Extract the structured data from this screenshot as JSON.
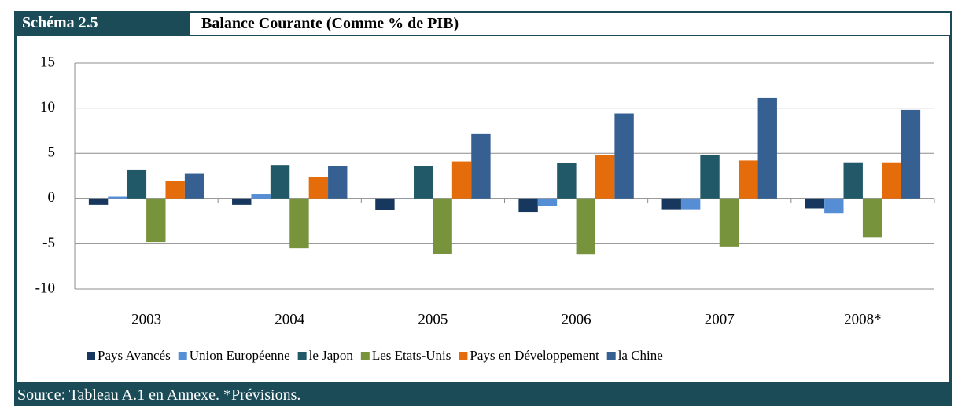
{
  "header": {
    "label": "Schéma 2.5",
    "title": "Balance Courante (Comme % de PIB)"
  },
  "chart_data": {
    "type": "bar",
    "categories": [
      "2003",
      "2004",
      "2005",
      "2006",
      "2007",
      "2008*"
    ],
    "series": [
      {
        "name": "Pays Avancés",
        "color": "#17375e",
        "values": [
          -0.7,
          -0.7,
          -1.3,
          -1.5,
          -1.2,
          -1.1
        ]
      },
      {
        "name": "Union Européenne",
        "color": "#558ed5",
        "values": [
          0.2,
          0.5,
          -0.1,
          -0.8,
          -1.2,
          -1.6
        ]
      },
      {
        "name": "le Japon",
        "color": "#215968",
        "values": [
          3.2,
          3.7,
          3.6,
          3.9,
          4.8,
          4.0
        ]
      },
      {
        "name": "Les Etats-Unis",
        "color": "#77933c",
        "values": [
          -4.8,
          -5.5,
          -6.1,
          -6.2,
          -5.3,
          -4.3
        ]
      },
      {
        "name": "Pays en Développement",
        "color": "#e46c0a",
        "values": [
          1.9,
          2.4,
          4.1,
          4.8,
          4.2,
          4.0
        ]
      },
      {
        "name": "la Chine",
        "color": "#376092",
        "values": [
          2.8,
          3.6,
          7.2,
          9.4,
          11.1,
          9.8
        ]
      }
    ],
    "ylim": [
      -10,
      15
    ],
    "yticks": [
      -10,
      -5,
      0,
      5,
      10,
      15
    ],
    "grid": true
  },
  "footer": {
    "source": "Source: Tableau A.1 en Annexe. *Prévisions."
  }
}
